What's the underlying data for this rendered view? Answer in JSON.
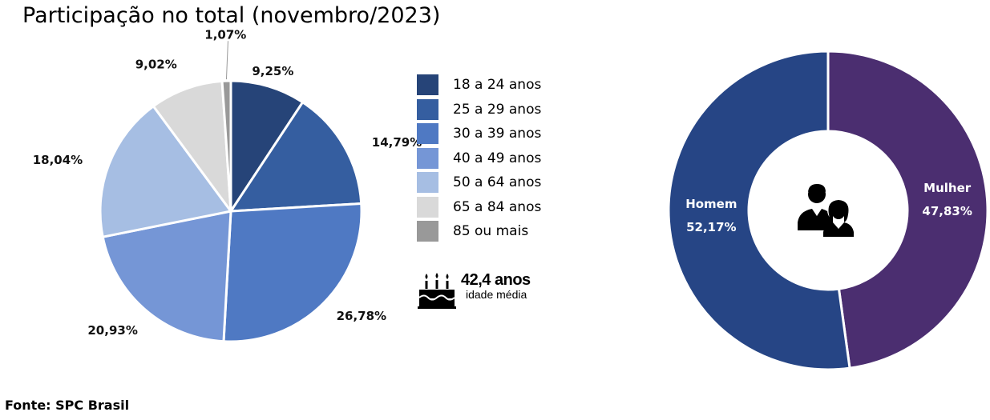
{
  "title": "Participação no total (novembro/2023)",
  "source": "Fonte: SPC Brasil",
  "colors": {
    "s18_24": "#264478",
    "s25_29": "#355ea0",
    "s30_39": "#4f79c3",
    "s40_49": "#7596d6",
    "s50_64": "#a6bee3",
    "s65_84": "#d9d9d9",
    "s85": "#999999",
    "homem": "#264585",
    "mulher": "#4b2e70"
  },
  "chart_data": [
    {
      "type": "pie",
      "title": "Participação no total (novembro/2023)",
      "categories": [
        "18 a 24 anos",
        "25 a 29 anos",
        "30 a 39 anos",
        "40 a 49 anos",
        "50 a 64 anos",
        "65 a 84 anos",
        "85 ou mais"
      ],
      "values": [
        9.25,
        14.79,
        26.78,
        20.93,
        18.04,
        9.02,
        1.07
      ],
      "data_labels": [
        "9,25%",
        "14,79%",
        "26,78%",
        "20,93%",
        "18,04%",
        "9,02%",
        "1,07%"
      ],
      "legend": "right",
      "annotation": {
        "value": "42,4 anos",
        "caption": "idade média",
        "icon": "birthday-cake-icon"
      }
    },
    {
      "type": "pie",
      "variant": "donut",
      "categories": [
        "Mulher",
        "Homem"
      ],
      "values": [
        47.83,
        52.17
      ],
      "data_labels": [
        "47,83%",
        "52,17%"
      ],
      "center_icon": "people-icon"
    }
  ]
}
